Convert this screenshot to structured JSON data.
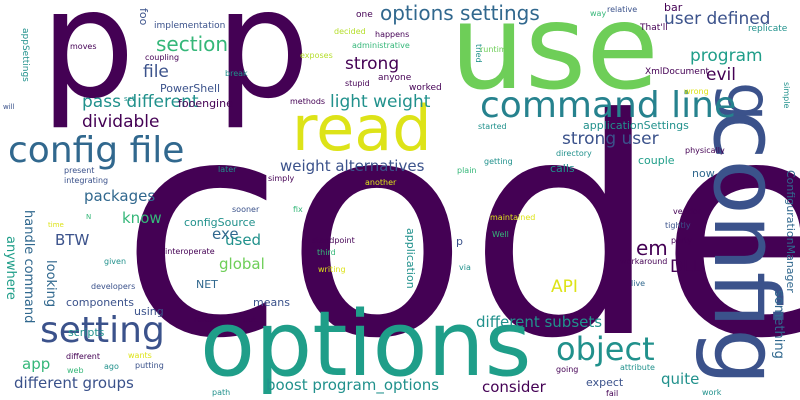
{
  "palette": {
    "dark_purple": "#440154",
    "indigo": "#3b528b",
    "blue": "#31688e",
    "teal_blue": "#26828e",
    "teal": "#21918c",
    "sea_green": "#1f9e89",
    "green": "#35b779",
    "lime": "#6ece58",
    "yellow_green": "#b5de2b",
    "yellow": "#dde318",
    "background": "#ffffff"
  },
  "words": [
    {
      "text": "code",
      "color": "dark_purple"
    },
    {
      "text": "p",
      "color": "dark_purple"
    },
    {
      "text": "p",
      "color": "dark_purple"
    },
    {
      "text": "use",
      "color": "lime"
    },
    {
      "text": "options",
      "color": "sea_green"
    },
    {
      "text": "config",
      "color": "indigo"
    },
    {
      "text": "read",
      "color": "yellow"
    },
    {
      "text": "g",
      "color": "indigo"
    },
    {
      "text": "command line",
      "color": "teal_blue"
    },
    {
      "text": "config file",
      "color": "blue"
    },
    {
      "text": "setting",
      "color": "indigo"
    },
    {
      "text": "object",
      "color": "teal"
    },
    {
      "text": "options settings",
      "color": "blue"
    },
    {
      "text": "section",
      "color": "green"
    },
    {
      "text": "user defined",
      "color": "indigo"
    },
    {
      "text": "program",
      "color": "sea_green"
    },
    {
      "text": "evil",
      "color": "dark_purple"
    },
    {
      "text": "file",
      "color": "indigo"
    },
    {
      "text": "strong",
      "color": "dark_purple"
    },
    {
      "text": "pass different",
      "color": "teal"
    },
    {
      "text": "light weight",
      "color": "teal"
    },
    {
      "text": "dividable",
      "color": "dark_purple"
    },
    {
      "text": "strong user",
      "color": "indigo"
    },
    {
      "text": "weight alternatives",
      "color": "indigo"
    },
    {
      "text": "packages",
      "color": "blue"
    },
    {
      "text": "know",
      "color": "green"
    },
    {
      "text": "exe",
      "color": "blue"
    },
    {
      "text": "used",
      "color": "teal"
    },
    {
      "text": "global",
      "color": "lime"
    },
    {
      "text": "BTW",
      "color": "indigo"
    },
    {
      "text": "em",
      "color": "dark_purple"
    },
    {
      "text": "DLL",
      "color": "dark_purple"
    },
    {
      "text": "API",
      "color": "yellow"
    },
    {
      "text": "different subsets",
      "color": "teal"
    },
    {
      "text": "different groups",
      "color": "indigo"
    },
    {
      "text": "boost program_options",
      "color": "teal"
    },
    {
      "text": "consider",
      "color": "dark_purple"
    },
    {
      "text": "quite",
      "color": "teal"
    },
    {
      "text": "something",
      "color": "blue"
    },
    {
      "text": "app",
      "color": "green"
    },
    {
      "text": "handle command",
      "color": "blue"
    },
    {
      "text": "anywhere",
      "color": "sea_green"
    },
    {
      "text": "looking",
      "color": "blue"
    },
    {
      "text": "application",
      "color": "teal"
    },
    {
      "text": "ConfigurationManager",
      "color": "blue"
    },
    {
      "text": "foo",
      "color": "indigo"
    },
    {
      "text": "bar",
      "color": "dark_purple"
    },
    {
      "text": "PowerShell",
      "color": "indigo"
    },
    {
      "text": "fooengine",
      "color": "dark_purple"
    },
    {
      "text": "applicationSettings",
      "color": "teal"
    },
    {
      "text": "couple",
      "color": "sea_green"
    },
    {
      "text": "now",
      "color": "blue"
    },
    {
      "text": "calls",
      "color": "teal"
    },
    {
      "text": "configSource",
      "color": "teal"
    },
    {
      "text": "components",
      "color": "indigo"
    },
    {
      "text": "scripts",
      "color": "teal"
    },
    {
      "text": "using",
      "color": "indigo"
    },
    {
      "text": "means",
      "color": "indigo"
    },
    {
      "text": "NET",
      "color": "blue"
    },
    {
      "text": "expect",
      "color": "indigo"
    },
    {
      "text": "p",
      "color": "indigo"
    },
    {
      "text": "appSettings",
      "color": "teal"
    },
    {
      "text": "implementation",
      "color": "indigo"
    },
    {
      "text": "one",
      "color": "dark_purple"
    },
    {
      "text": "anyone",
      "color": "dark_purple"
    },
    {
      "text": "worked",
      "color": "dark_purple"
    },
    {
      "text": "XmlDocument",
      "color": "dark_purple"
    },
    {
      "text": "That'll",
      "color": "dark_purple"
    },
    {
      "text": "replicate",
      "color": "teal"
    },
    {
      "text": "relative",
      "color": "indigo"
    },
    {
      "text": "way",
      "color": "green"
    },
    {
      "text": "moves",
      "color": "dark_purple"
    },
    {
      "text": "coupling",
      "color": "dark_purple"
    },
    {
      "text": "break",
      "color": "teal"
    },
    {
      "text": "methods",
      "color": "dark_purple"
    },
    {
      "text": "exposes",
      "color": "yellow_green"
    },
    {
      "text": "decided",
      "color": "yellow_green"
    },
    {
      "text": "administrative",
      "color": "green"
    },
    {
      "text": "stupid",
      "color": "dark_purple"
    },
    {
      "text": "happens",
      "color": "dark_purple"
    },
    {
      "text": "tried",
      "color": "teal"
    },
    {
      "text": "runtime",
      "color": "lime"
    },
    {
      "text": "started",
      "color": "teal"
    },
    {
      "text": "wrong",
      "color": "yellow"
    },
    {
      "text": "simple",
      "color": "teal"
    },
    {
      "text": "physically",
      "color": "dark_purple"
    },
    {
      "text": "directory",
      "color": "teal"
    },
    {
      "text": "getting",
      "color": "teal"
    },
    {
      "text": "plain",
      "color": "green"
    },
    {
      "text": "another",
      "color": "yellow"
    },
    {
      "text": "present",
      "color": "indigo"
    },
    {
      "text": "integrating",
      "color": "indigo"
    },
    {
      "text": "simply",
      "color": "dark_purple"
    },
    {
      "text": "later",
      "color": "teal"
    },
    {
      "text": "sooner",
      "color": "indigo"
    },
    {
      "text": "fix",
      "color": "green"
    },
    {
      "text": "maintained",
      "color": "yellow"
    },
    {
      "text": "Well",
      "color": "green"
    },
    {
      "text": "vendor",
      "color": "dark_purple"
    },
    {
      "text": "tightly",
      "color": "indigo"
    },
    {
      "text": "third",
      "color": "green"
    },
    {
      "text": "party",
      "color": "dark_purple"
    },
    {
      "text": "standpoint",
      "color": "dark_purple"
    },
    {
      "text": "writing",
      "color": "yellow"
    },
    {
      "text": "interoperate",
      "color": "dark_purple"
    },
    {
      "text": "via",
      "color": "teal"
    },
    {
      "text": "workaround",
      "color": "dark_purple"
    },
    {
      "text": "live",
      "color": "blue"
    },
    {
      "text": "given",
      "color": "teal"
    },
    {
      "text": "developers",
      "color": "indigo"
    },
    {
      "text": "release",
      "color": "dark_purple"
    },
    {
      "text": "put",
      "color": "dark_purple"
    },
    {
      "text": "different",
      "color": "dark_purple"
    },
    {
      "text": "wants",
      "color": "yellow"
    },
    {
      "text": "putting",
      "color": "indigo"
    },
    {
      "text": "web",
      "color": "green"
    },
    {
      "text": "ago",
      "color": "teal"
    },
    {
      "text": "going",
      "color": "dark_purple"
    },
    {
      "text": "attribute",
      "color": "teal"
    },
    {
      "text": "fail",
      "color": "dark_purple"
    },
    {
      "text": "path",
      "color": "teal"
    },
    {
      "text": "work",
      "color": "teal"
    },
    {
      "text": "time",
      "color": "yellow"
    },
    {
      "text": "set",
      "color": "teal"
    },
    {
      "text": "will",
      "color": "indigo"
    },
    {
      "text": "N",
      "color": "green"
    }
  ]
}
